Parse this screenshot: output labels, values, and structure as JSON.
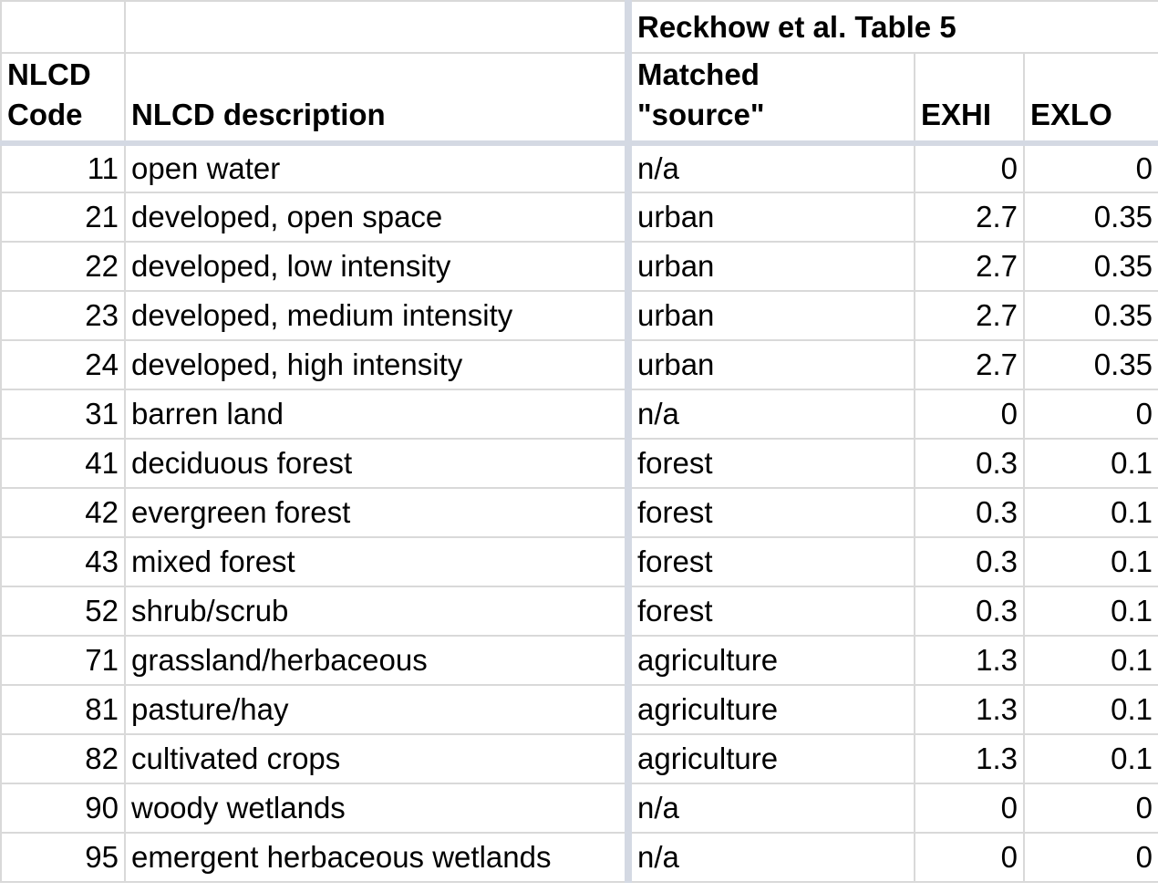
{
  "table": {
    "super_header": "Reckhow et al. Table 5",
    "headers": {
      "code": "NLCD Code",
      "code_line1": "NLCD",
      "code_line2": "Code",
      "description": "NLCD description",
      "source_line1": "Matched",
      "source_line2": "\"source\"",
      "exhi": "EXHI",
      "exlo": "EXLO"
    },
    "rows": [
      {
        "code": "11",
        "description": "open water",
        "source": "n/a",
        "exhi": "0",
        "exlo": "0"
      },
      {
        "code": "21",
        "description": "developed, open space",
        "source": "urban",
        "exhi": "2.7",
        "exlo": "0.35"
      },
      {
        "code": "22",
        "description": "developed, low intensity",
        "source": "urban",
        "exhi": "2.7",
        "exlo": "0.35"
      },
      {
        "code": "23",
        "description": "developed, medium intensity",
        "source": "urban",
        "exhi": "2.7",
        "exlo": "0.35"
      },
      {
        "code": "24",
        "description": "developed, high intensity",
        "source": "urban",
        "exhi": "2.7",
        "exlo": "0.35"
      },
      {
        "code": "31",
        "description": "barren land",
        "source": "n/a",
        "exhi": "0",
        "exlo": "0"
      },
      {
        "code": "41",
        "description": "deciduous forest",
        "source": "forest",
        "exhi": "0.3",
        "exlo": "0.1"
      },
      {
        "code": "42",
        "description": "evergreen forest",
        "source": "forest",
        "exhi": "0.3",
        "exlo": "0.1"
      },
      {
        "code": "43",
        "description": "mixed forest",
        "source": "forest",
        "exhi": "0.3",
        "exlo": "0.1"
      },
      {
        "code": "52",
        "description": "shrub/scrub",
        "source": "forest",
        "exhi": "0.3",
        "exlo": "0.1"
      },
      {
        "code": "71",
        "description": "grassland/herbaceous",
        "source": "agriculture",
        "exhi": "1.3",
        "exlo": "0.1"
      },
      {
        "code": "81",
        "description": "pasture/hay",
        "source": "agriculture",
        "exhi": "1.3",
        "exlo": "0.1"
      },
      {
        "code": "82",
        "description": "cultivated crops",
        "source": "agriculture",
        "exhi": "1.3",
        "exlo": "0.1"
      },
      {
        "code": "90",
        "description": "woody wetlands",
        "source": "n/a",
        "exhi": "0",
        "exlo": "0"
      },
      {
        "code": "95",
        "description": "emergent herbaceous wetlands",
        "source": "n/a",
        "exhi": "0",
        "exlo": "0"
      }
    ]
  },
  "colors": {
    "gridline": "#d9d9d9",
    "freeze_separator": "#d4d9e3",
    "background": "#ffffff",
    "text": "#000000"
  }
}
